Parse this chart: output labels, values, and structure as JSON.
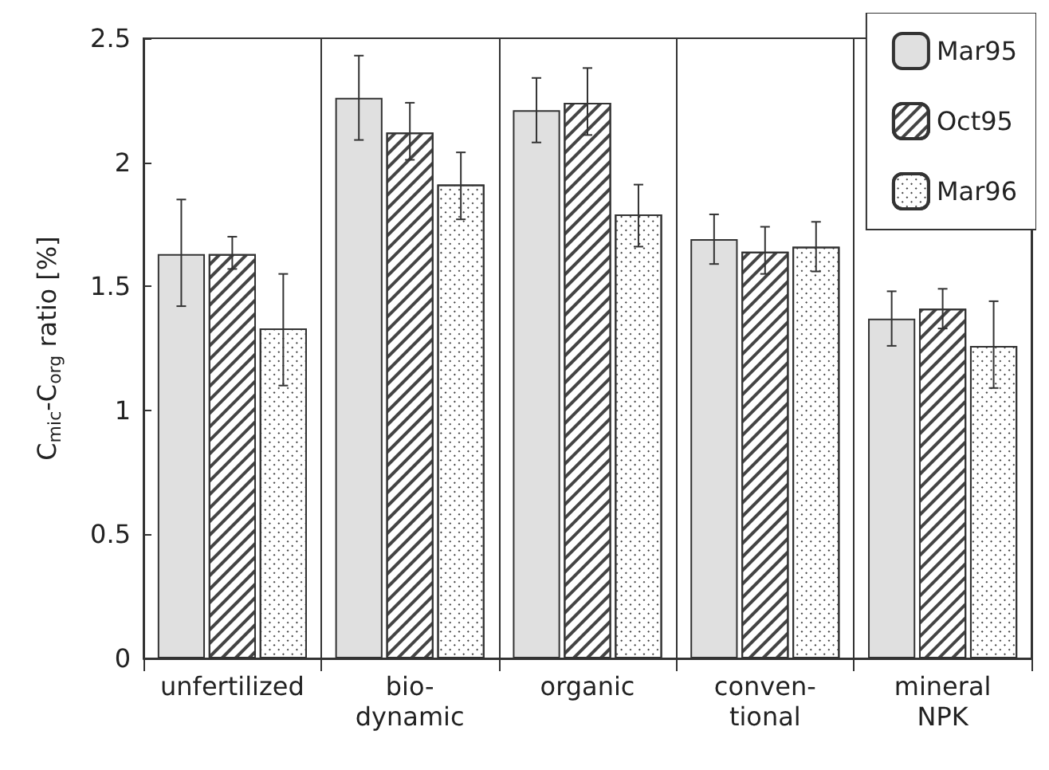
{
  "chart_data": {
    "type": "bar",
    "ylabel": "C$_{mic}$-C$_{org}$ ratio [%]",
    "categories": [
      "unfertilized",
      "bio-\ndynamic",
      "organic",
      "conven-\ntional",
      "mineral\nNPK"
    ],
    "series": [
      {
        "name": "Mar95",
        "color": "#e0e0e0",
        "values": [
          1.63,
          2.26,
          2.21,
          1.69,
          1.37
        ],
        "errors": [
          [
            1.42,
            1.85
          ],
          [
            2.09,
            2.43
          ],
          [
            2.08,
            2.34
          ],
          [
            1.59,
            1.79
          ],
          [
            1.26,
            1.48
          ]
        ]
      },
      {
        "name": "Oct95",
        "color": "#ffffff",
        "values": [
          1.63,
          2.12,
          2.24,
          1.64,
          1.41
        ],
        "errors": [
          [
            1.57,
            1.7
          ],
          [
            2.01,
            2.24
          ],
          [
            2.11,
            2.38
          ],
          [
            1.55,
            1.74
          ],
          [
            1.33,
            1.49
          ]
        ]
      },
      {
        "name": "Mar96",
        "color": "#ffffff",
        "values": [
          1.33,
          1.91,
          1.79,
          1.66,
          1.26
        ],
        "errors": [
          [
            1.1,
            1.55
          ],
          [
            1.77,
            2.04
          ],
          [
            1.66,
            1.91
          ],
          [
            1.56,
            1.76
          ],
          [
            1.09,
            1.44
          ]
        ]
      }
    ],
    "ylim": [
      0,
      2.5
    ],
    "yticks": [
      0,
      0.5,
      1,
      1.5,
      2,
      2.5
    ],
    "grid": "x",
    "legend": "top right"
  }
}
